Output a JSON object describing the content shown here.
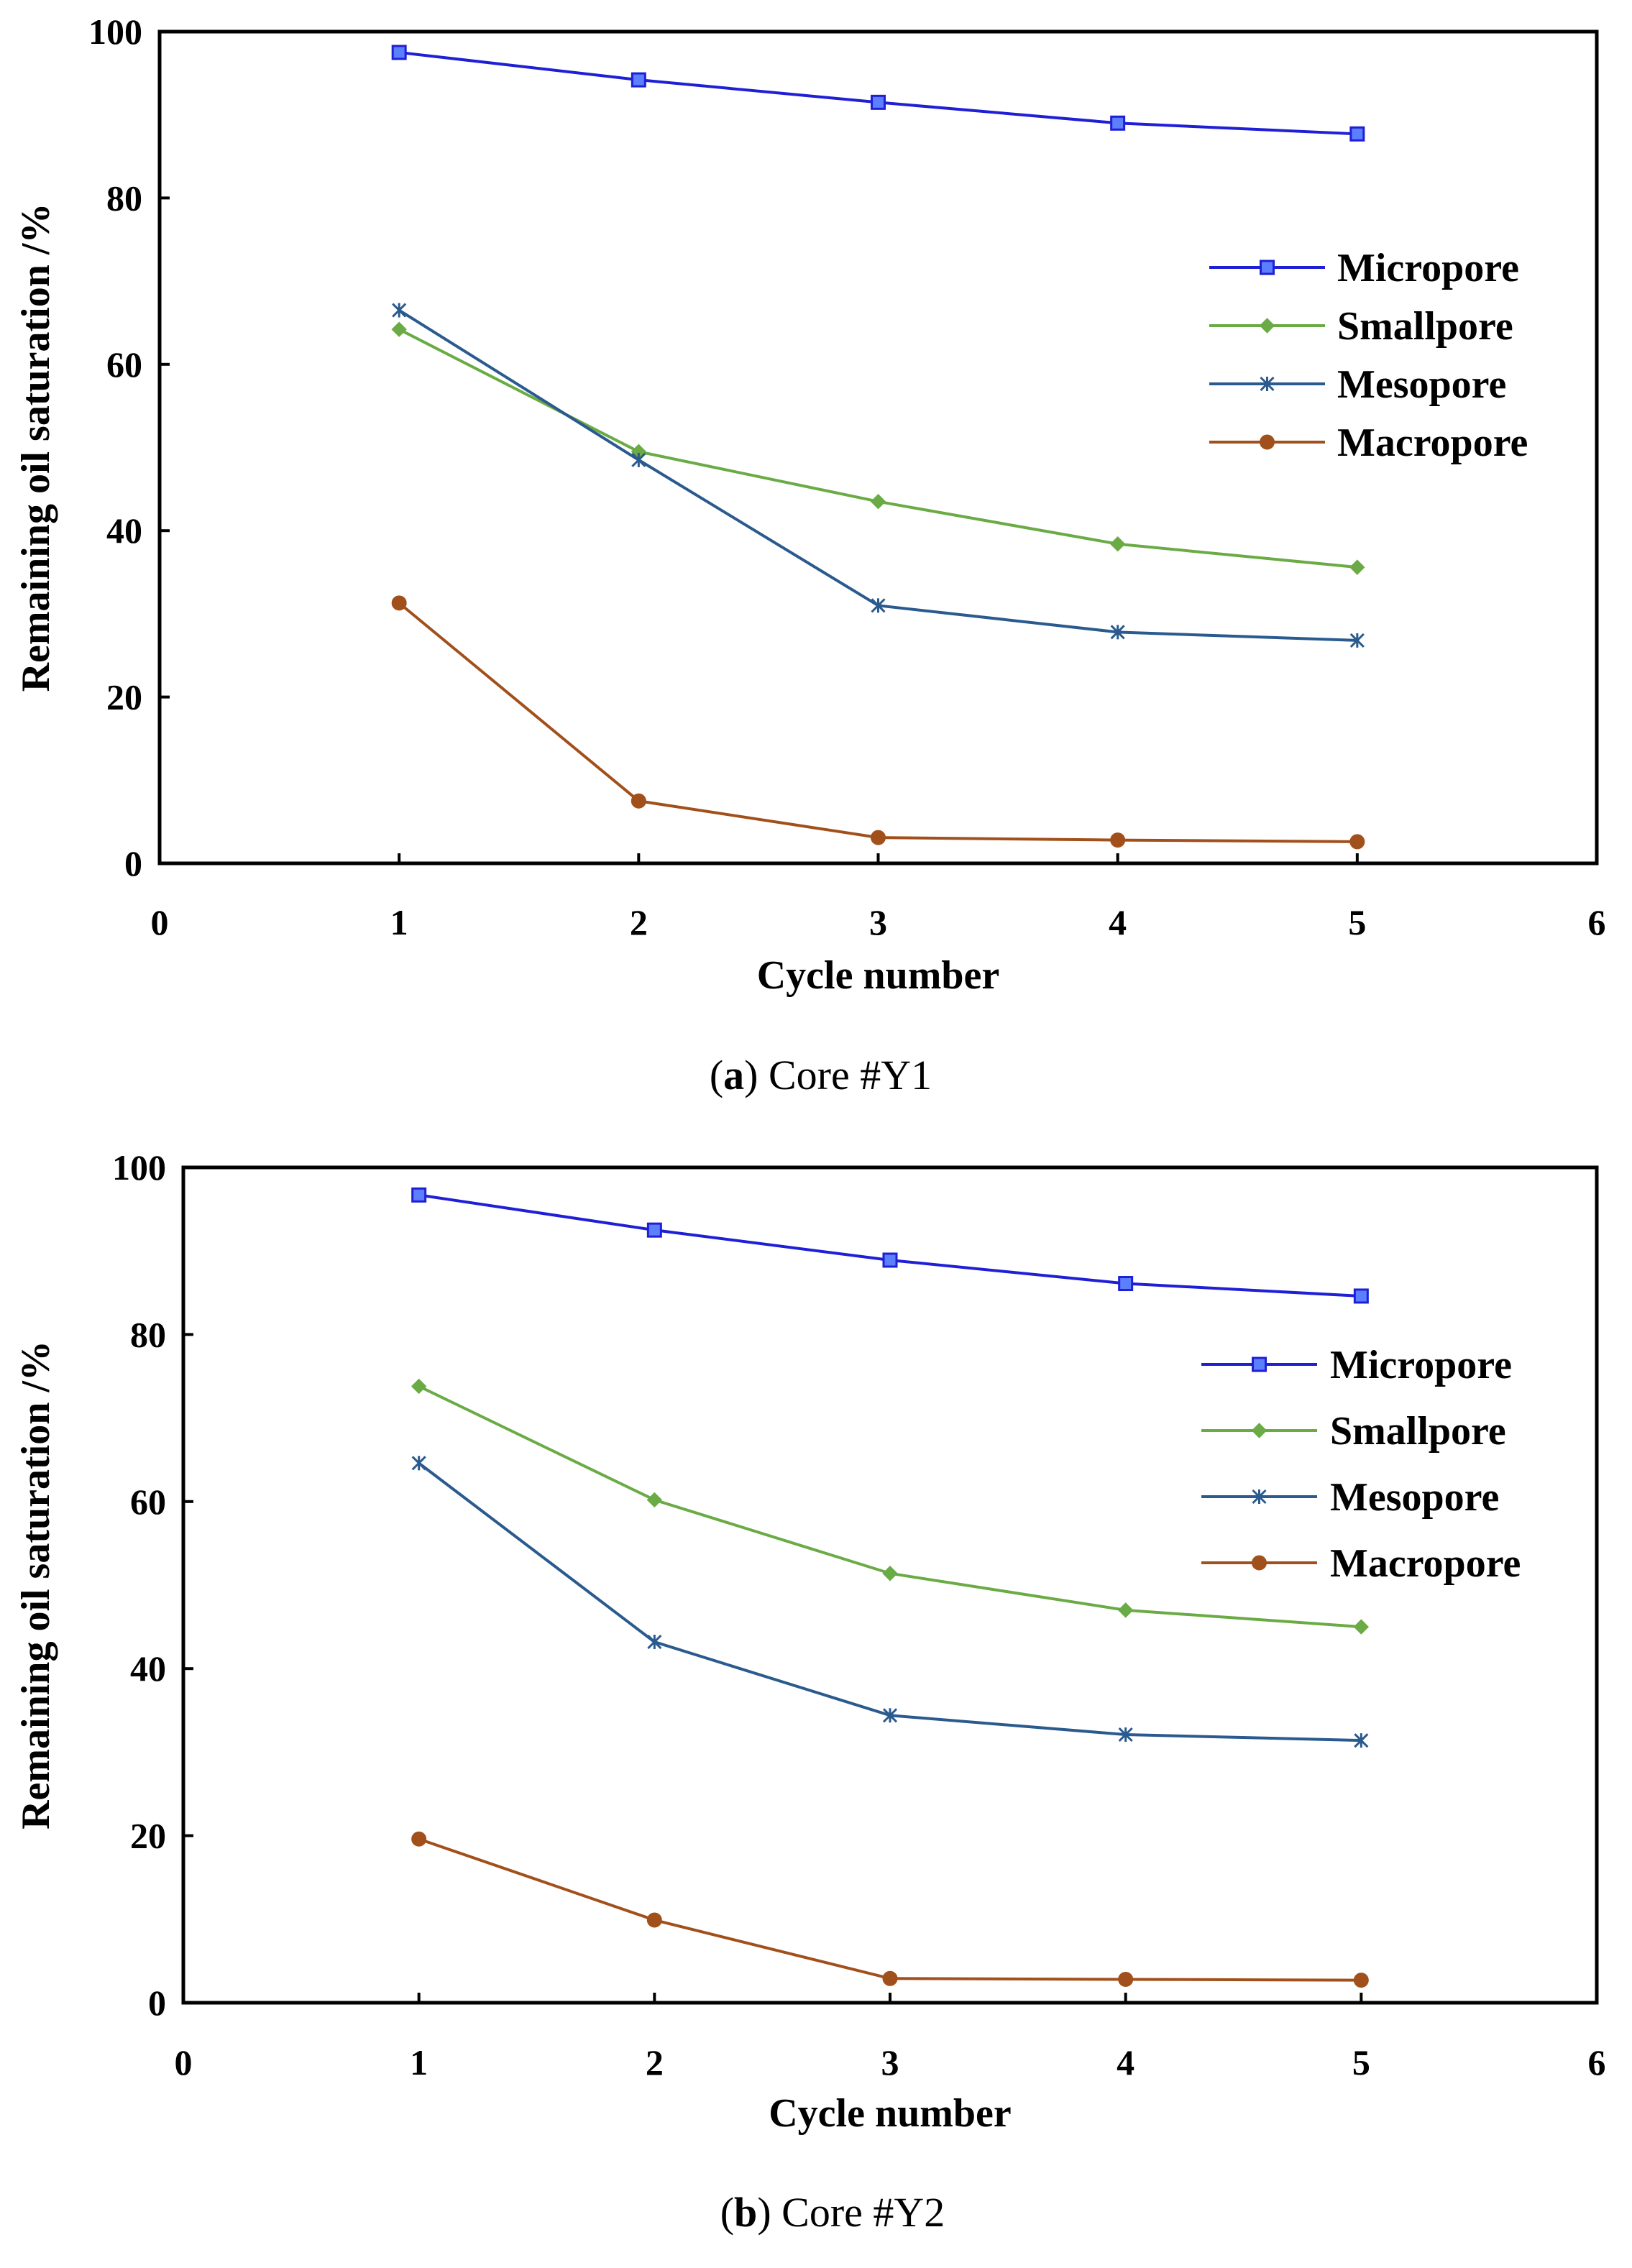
{
  "chart_data": [
    {
      "type": "line",
      "id": "a",
      "caption": {
        "open": "(",
        "letter": "a",
        "close": ")",
        "text": " Core #Y1"
      },
      "xlabel": "Cycle number",
      "ylabel": "Remaining oil saturation /%",
      "xlim": [
        0,
        6
      ],
      "ylim": [
        0,
        100
      ],
      "xticks": [
        0,
        1,
        2,
        3,
        4,
        5,
        6
      ],
      "yticks": [
        0,
        20,
        40,
        60,
        80,
        100
      ],
      "grid": false,
      "legend_position": "right",
      "x": [
        1,
        2,
        3,
        4,
        5
      ],
      "series": [
        {
          "name": "Micropore",
          "values": [
            97.5,
            94.2,
            91.5,
            89.0,
            87.7
          ],
          "color": "#1f1fd6",
          "marker": "square"
        },
        {
          "name": "Smallpore",
          "values": [
            64.2,
            49.5,
            43.5,
            38.4,
            35.6
          ],
          "color": "#6aab45",
          "marker": "diamond"
        },
        {
          "name": "Mesopore",
          "values": [
            66.5,
            48.5,
            31.0,
            27.8,
            26.8
          ],
          "color": "#2a5a8e",
          "marker": "asterisk"
        },
        {
          "name": "Macropore",
          "values": [
            31.3,
            7.5,
            3.1,
            2.8,
            2.6
          ],
          "color": "#a2501b",
          "marker": "circle"
        }
      ]
    },
    {
      "type": "line",
      "id": "b",
      "caption": {
        "open": "(",
        "letter": "b",
        "close": ")",
        "text": " Core #Y2"
      },
      "xlabel": "Cycle number",
      "ylabel": "Remaining oil saturation /%",
      "xlim": [
        0,
        6
      ],
      "ylim": [
        0,
        100
      ],
      "xticks": [
        0,
        1,
        2,
        3,
        4,
        5,
        6
      ],
      "yticks": [
        0,
        20,
        40,
        60,
        80,
        100
      ],
      "grid": false,
      "legend_position": "right",
      "x": [
        1,
        2,
        3,
        4,
        5
      ],
      "series": [
        {
          "name": "Micropore",
          "values": [
            96.7,
            92.5,
            88.9,
            86.1,
            84.6
          ],
          "color": "#1f1fd6",
          "marker": "square"
        },
        {
          "name": "Smallpore",
          "values": [
            73.8,
            60.2,
            51.4,
            47.0,
            45.0
          ],
          "color": "#6aab45",
          "marker": "diamond"
        },
        {
          "name": "Mesopore",
          "values": [
            64.6,
            43.2,
            34.4,
            32.1,
            31.4
          ],
          "color": "#2a5a8e",
          "marker": "asterisk"
        },
        {
          "name": "Macropore",
          "values": [
            19.6,
            9.9,
            2.9,
            2.8,
            2.7
          ],
          "color": "#a2501b",
          "marker": "circle"
        }
      ]
    }
  ]
}
